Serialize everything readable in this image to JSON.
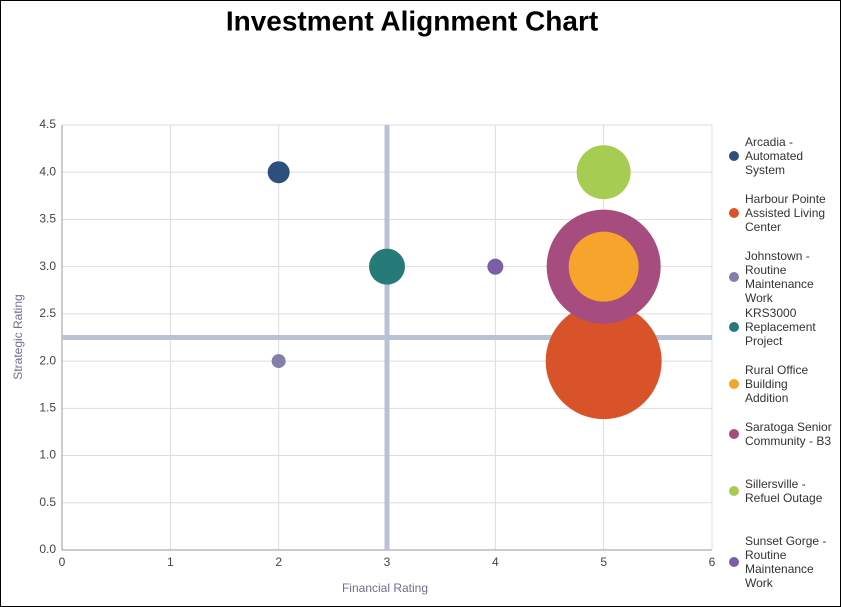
{
  "chart_data": {
    "type": "bubble",
    "title": "Investment Alignment Chart",
    "x_label": "Financial Rating",
    "y_label": "Strategic Rating",
    "xlim": [
      0,
      6
    ],
    "xticks": [
      0,
      1,
      2,
      3,
      4,
      5,
      6
    ],
    "ylim": [
      0,
      4.5
    ],
    "yticks": [
      {
        "value": 0,
        "label": "0.0"
      },
      0.5,
      {
        "value": 1,
        "label": "1.0"
      },
      1.5,
      {
        "value": 2,
        "label": "2.0"
      },
      2.5,
      {
        "value": 3,
        "label": "3.0"
      },
      3.5,
      {
        "value": 4,
        "label": "4.0"
      },
      4.5
    ],
    "grid": true,
    "legend": "right",
    "quadrant_lines": {
      "x": 3,
      "y": 2.25,
      "color": "#b8c2d4"
    },
    "series": [
      {
        "name": "Arcadia - Automated System",
        "color": "#2c4f7c",
        "x": [
          2
        ],
        "values": [
          4
        ],
        "size": [
          121
        ]
      },
      {
        "name": "Harbour Pointe Assisted Living Center",
        "color": "#d9532a",
        "x": [
          5
        ],
        "values": [
          2
        ],
        "size": [
          3364
        ]
      },
      {
        "name": "Johnstown - Routine Maintenance Work",
        "color": "#8080a8",
        "x": [
          2
        ],
        "values": [
          2
        ],
        "size": [
          49
        ]
      },
      {
        "name": "KRS3000 Replacement Project",
        "color": "#267a78",
        "x": [
          3
        ],
        "values": [
          3
        ],
        "size": [
          324
        ]
      },
      {
        "name": "Rural Office Building Addition",
        "color": "#f7a42c",
        "x": [
          5
        ],
        "values": [
          3
        ],
        "size": [
          1225
        ]
      },
      {
        "name": "Saratoga Senior Community - B3",
        "color": "#a64c7e",
        "x": [
          5
        ],
        "values": [
          3
        ],
        "size": [
          3249
        ]
      },
      {
        "name": "Sillersville - Refuel Outage",
        "color": "#a6cc52",
        "x": [
          5
        ],
        "values": [
          4
        ],
        "size": [
          729
        ]
      },
      {
        "name": "Sunset Gorge - Routine Maintenance Work",
        "color": "#7b5ea7",
        "x": [
          4
        ],
        "values": [
          3
        ],
        "size": [
          64
        ]
      }
    ]
  }
}
